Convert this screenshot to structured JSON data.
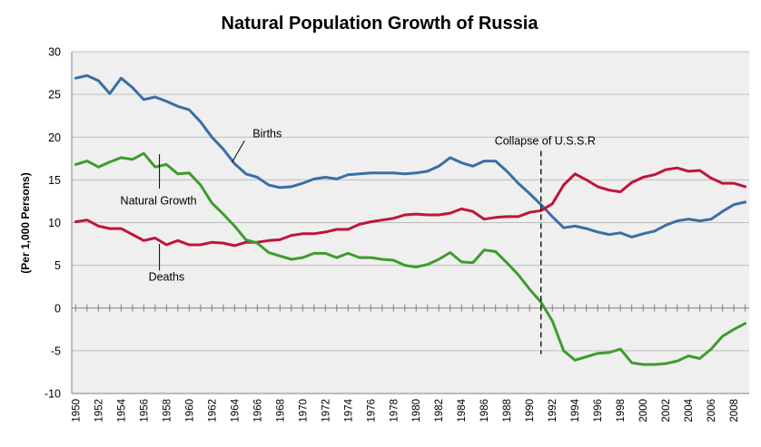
{
  "chart_data": {
    "type": "line",
    "title": "Natural Population Growth of Russia",
    "xlabel": "",
    "ylabel": "(Per 1,000 Persons)",
    "xlim": [
      1950,
      2009
    ],
    "ylim": [
      -10,
      30
    ],
    "y_ticks": [
      -10,
      -5,
      0,
      5,
      10,
      15,
      20,
      25,
      30
    ],
    "x_tick_labels": [
      "1950",
      "1952",
      "1954",
      "1956",
      "1958",
      "1960",
      "1962",
      "1964",
      "1966",
      "1968",
      "1970",
      "1972",
      "1974",
      "1976",
      "1978",
      "1980",
      "1982",
      "1984",
      "1986",
      "1988",
      "1990",
      "1992",
      "1994",
      "1996",
      "1998",
      "2000",
      "2002",
      "2004",
      "2006",
      "2008"
    ],
    "grid": true,
    "background": "#efefef",
    "x": [
      1950,
      1951,
      1952,
      1953,
      1954,
      1955,
      1956,
      1957,
      1958,
      1959,
      1960,
      1961,
      1962,
      1963,
      1964,
      1965,
      1966,
      1967,
      1968,
      1969,
      1970,
      1971,
      1972,
      1973,
      1974,
      1975,
      1976,
      1977,
      1978,
      1979,
      1980,
      1981,
      1982,
      1983,
      1984,
      1985,
      1986,
      1987,
      1988,
      1989,
      1990,
      1991,
      1992,
      1993,
      1994,
      1995,
      1996,
      1997,
      1998,
      1999,
      2000,
      2001,
      2002,
      2003,
      2004,
      2005,
      2006,
      2007,
      2008,
      2009
    ],
    "series": [
      {
        "name": "Births",
        "color": "#3a6ea5",
        "values": [
          26.9,
          27.2,
          26.6,
          25.1,
          26.9,
          25.8,
          24.4,
          24.7,
          24.2,
          23.6,
          23.2,
          21.8,
          20.0,
          18.6,
          16.9,
          15.7,
          15.3,
          14.4,
          14.1,
          14.2,
          14.6,
          15.1,
          15.3,
          15.1,
          15.6,
          15.7,
          15.8,
          15.8,
          15.8,
          15.7,
          15.8,
          16.0,
          16.6,
          17.6,
          17.0,
          16.6,
          17.2,
          17.2,
          16.0,
          14.6,
          13.4,
          12.1,
          10.7,
          9.4,
          9.6,
          9.3,
          8.9,
          8.6,
          8.8,
          8.3,
          8.7,
          9.0,
          9.7,
          10.2,
          10.4,
          10.2,
          10.4,
          11.3,
          12.1,
          12.4
        ]
      },
      {
        "name": "Deaths",
        "color": "#c0143c",
        "values": [
          10.1,
          10.3,
          9.6,
          9.3,
          9.3,
          8.6,
          7.9,
          8.2,
          7.4,
          7.9,
          7.4,
          7.4,
          7.7,
          7.6,
          7.3,
          7.7,
          7.7,
          7.9,
          8.0,
          8.5,
          8.7,
          8.7,
          8.9,
          9.2,
          9.2,
          9.8,
          10.1,
          10.3,
          10.5,
          10.9,
          11.0,
          10.9,
          10.9,
          11.1,
          11.6,
          11.3,
          10.4,
          10.6,
          10.7,
          10.7,
          11.2,
          11.4,
          12.2,
          14.4,
          15.7,
          15.0,
          14.2,
          13.8,
          13.6,
          14.7,
          15.3,
          15.6,
          16.2,
          16.4,
          16.0,
          16.1,
          15.2,
          14.6,
          14.6,
          14.2
        ]
      },
      {
        "name": "Natural Growth",
        "color": "#3e9b2e",
        "values": [
          16.8,
          17.2,
          16.5,
          17.1,
          17.6,
          17.4,
          18.1,
          16.5,
          16.8,
          15.7,
          15.8,
          14.4,
          12.3,
          11.0,
          9.6,
          8.0,
          7.6,
          6.5,
          6.1,
          5.7,
          5.9,
          6.4,
          6.4,
          5.9,
          6.4,
          5.9,
          5.9,
          5.7,
          5.6,
          5.0,
          4.8,
          5.1,
          5.7,
          6.5,
          5.4,
          5.3,
          6.8,
          6.6,
          5.3,
          3.9,
          2.2,
          0.7,
          -1.5,
          -5.0,
          -6.1,
          -5.7,
          -5.3,
          -5.2,
          -4.8,
          -6.4,
          -6.6,
          -6.6,
          -6.5,
          -6.2,
          -5.6,
          -5.9,
          -4.8,
          -3.3,
          -2.5,
          -1.8
        ]
      }
    ],
    "annotations": [
      {
        "text": "Births",
        "x": 1965.2,
        "y": 20.0
      },
      {
        "text": "Natural Growth",
        "x": 1957.3,
        "y": 14.4
      },
      {
        "text": "Deaths",
        "x": 1957.3,
        "y": 7.5
      },
      {
        "text": "Collapse of U.S.S.R",
        "x": 1991,
        "y": 19.1
      }
    ]
  }
}
